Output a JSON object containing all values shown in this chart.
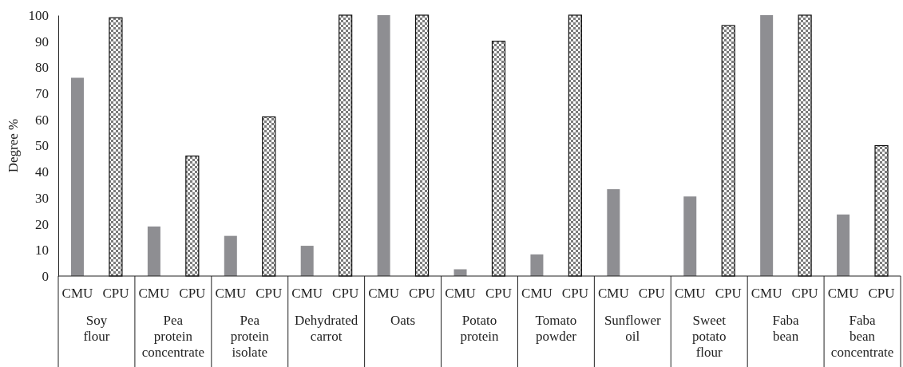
{
  "chart_data": {
    "type": "bar",
    "ylabel": "Degree %",
    "categories": [
      "Soy flour",
      "Pea protein concentrate",
      "Pea protein isolate",
      "Dehydrated carrot",
      "Oats",
      "Potato protein",
      "Tomato powder",
      "Sunflower oil",
      "Sweet potato flour",
      "Faba bean",
      "Faba bean concentrate"
    ],
    "series": [
      {
        "name": "CMU",
        "color": "#8e8e92",
        "values": [
          76,
          19,
          15.4,
          11.6,
          100,
          2.6,
          8.3,
          33.3,
          30.5,
          100,
          23.6
        ]
      },
      {
        "name": "CPU",
        "color": "#111111",
        "values": [
          99,
          46,
          61,
          100,
          100,
          90,
          100,
          0,
          96,
          100,
          50
        ]
      }
    ],
    "ylim": [
      0,
      100
    ],
    "yticks": [
      0,
      10,
      20,
      30,
      40,
      50,
      60,
      70,
      80,
      90,
      100
    ],
    "grid": false
  }
}
